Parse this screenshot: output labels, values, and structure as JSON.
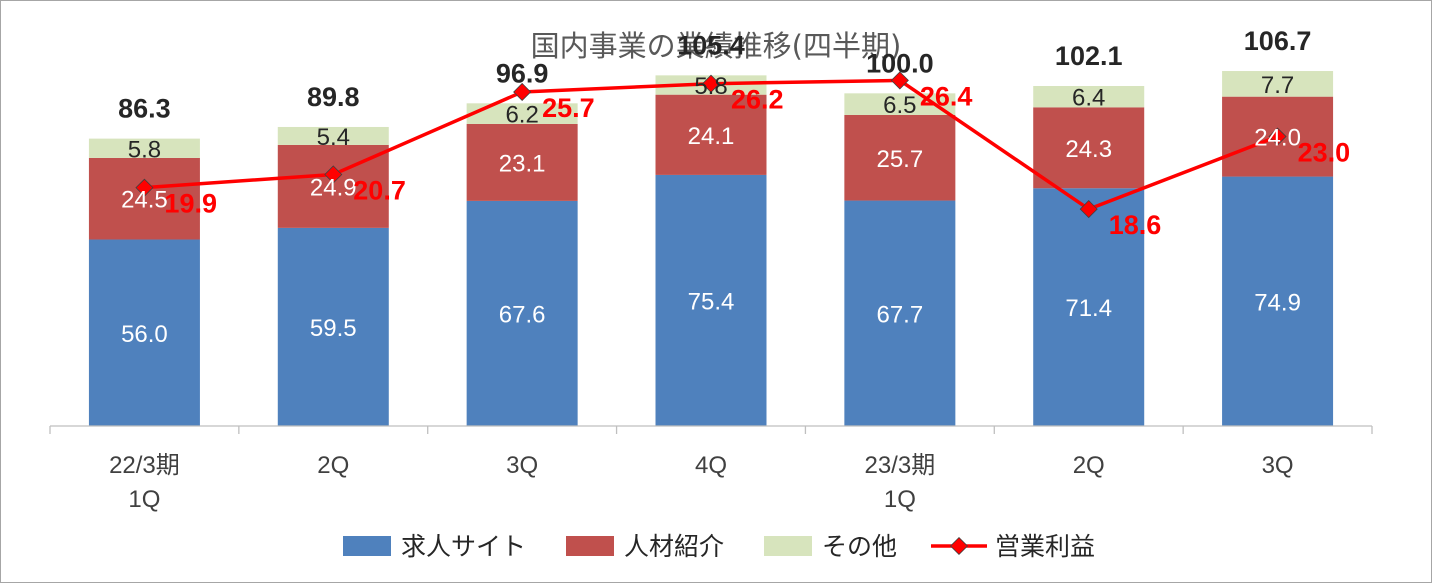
{
  "chart_data": {
    "type": "bar",
    "title": "国内事業の業績推移(四半期)",
    "categories": [
      [
        "22/3期",
        "1Q"
      ],
      [
        "2Q"
      ],
      [
        "3Q"
      ],
      [
        "4Q"
      ],
      [
        "23/3期",
        "1Q"
      ],
      [
        "2Q"
      ],
      [
        "3Q"
      ]
    ],
    "series": [
      {
        "name": "求人サイト",
        "type": "bar",
        "color": "#4f81bd",
        "values": [
          56.0,
          59.5,
          67.6,
          75.4,
          67.7,
          71.4,
          74.9
        ]
      },
      {
        "name": "人材紹介",
        "type": "bar",
        "color": "#c0504d",
        "values": [
          24.5,
          24.9,
          23.1,
          24.1,
          25.7,
          24.3,
          24.0
        ]
      },
      {
        "name": "その他",
        "type": "bar",
        "color": "#d7e4bd",
        "values": [
          5.8,
          5.4,
          6.2,
          5.8,
          6.5,
          6.4,
          7.7
        ]
      },
      {
        "name": "営業利益",
        "type": "line",
        "color": "#ff0000",
        "values": [
          19.9,
          20.7,
          25.7,
          26.2,
          26.4,
          18.6,
          23.0
        ]
      }
    ],
    "totals": [
      86.3,
      89.8,
      96.9,
      105.4,
      100.0,
      102.1,
      106.7
    ],
    "stacked": true,
    "gridlines": false,
    "legend_position": "bottom"
  }
}
